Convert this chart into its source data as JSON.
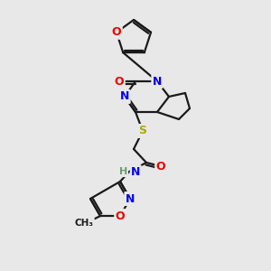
{
  "bg_color": "#e8e8e8",
  "bond_color": "#1a1a1a",
  "atom_colors": {
    "N": "#0000ee",
    "O": "#ee0000",
    "S": "#aaaa00",
    "H": "#6a9f6a",
    "C": "#1a1a1a"
  },
  "lw": 1.6,
  "fs": 9.0
}
